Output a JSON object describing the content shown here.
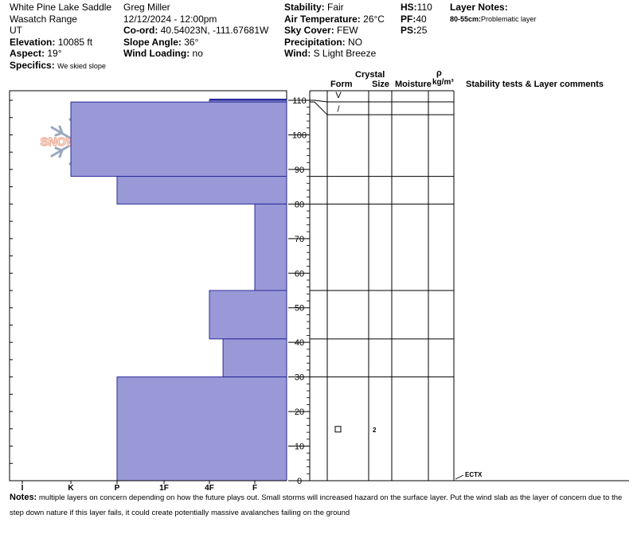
{
  "header": {
    "location": "White Pine Lake Saddle",
    "range": "Wasatch Range",
    "state": "UT",
    "elevation_label": "Elevation:",
    "elevation_value": "10085 ft",
    "aspect_label": "Aspect:",
    "aspect_value": "19°",
    "specifics_label": "Specifics:",
    "specifics_value": "We skied slope",
    "observer": "Greg Miller",
    "datetime": "12/12/2024 - 12:00pm",
    "coord_label": "Co-ord:",
    "coord_value": "40.54023N, -111.67681W",
    "slope_label": "Slope Angle:",
    "slope_value": "36°",
    "wind_loading_label": "Wind Loading:",
    "wind_loading_value": "no",
    "stability_label": "Stability:",
    "stability_value": "Fair",
    "air_temp_label": "Air Temperature:",
    "air_temp_value": "26°C",
    "sky_label": "Sky Cover:",
    "sky_value": "FEW",
    "precip_label": "Precipitation:",
    "precip_value": "NO",
    "wind_label": "Wind:",
    "wind_value": "S Light Breeze",
    "hs_label": "HS:",
    "hs_value": "110",
    "pf_label": "PF:",
    "pf_value": "40",
    "ps_label": "PS:",
    "ps_value": "25",
    "layer_notes_label": "Layer Notes:",
    "layer_note_range": "80-55cm:",
    "layer_note_text": "Problematic layer"
  },
  "columns": {
    "crystal": "Crystal",
    "form": "Form",
    "size": "Size",
    "moisture": "Moisture",
    "rho": "ρ",
    "density_unit": "kg/m³",
    "stability_tests": "Stability tests & Layer comments"
  },
  "logo_text": "SNOWPILOT",
  "notes": {
    "label": "Notes:",
    "text": "multiple layers on concern depending on how the future plays out. Small storms will increased hazard on the surface layer. Put the wind slab as the layer of concern due to the step down nature if this layer fails, it could create potentially massive avalanches failing on the ground"
  },
  "colors": {
    "layer_fill": "#9999d8",
    "layer_stroke": "#2a2a9a"
  },
  "chart_data": {
    "type": "bar",
    "orientation": "horizontal-step",
    "hardness_scale": [
      "I",
      "K",
      "P",
      "1F",
      "4F",
      "F"
    ],
    "ylim": [
      0,
      110
    ],
    "yticks": [
      0,
      10,
      20,
      30,
      40,
      50,
      60,
      70,
      80,
      90,
      100,
      110
    ],
    "layers": [
      {
        "top": 110,
        "bottom": 109.5,
        "hardness_index": 4
      },
      {
        "top": 109.5,
        "bottom": 88,
        "hardness_index": 1
      },
      {
        "top": 88,
        "bottom": 80,
        "hardness_index": 2
      },
      {
        "top": 80,
        "bottom": 55,
        "hardness_index": 5
      },
      {
        "top": 55,
        "bottom": 41,
        "hardness_index": 4
      },
      {
        "top": 41,
        "bottom": 30,
        "hardness_index": 4.3
      },
      {
        "top": 30,
        "bottom": 0,
        "hardness_index": 2
      }
    ],
    "layer_boundaries": [
      110,
      109.5,
      88,
      80,
      55,
      41,
      30,
      0
    ],
    "grain_symbols": [
      {
        "height": 110,
        "symbol": "V"
      },
      {
        "height": 109,
        "symbol": "/"
      },
      {
        "height": 15,
        "symbol": "□",
        "size": "2"
      }
    ],
    "stability_tests": [
      {
        "height": 0,
        "label": "ECTX"
      }
    ]
  }
}
